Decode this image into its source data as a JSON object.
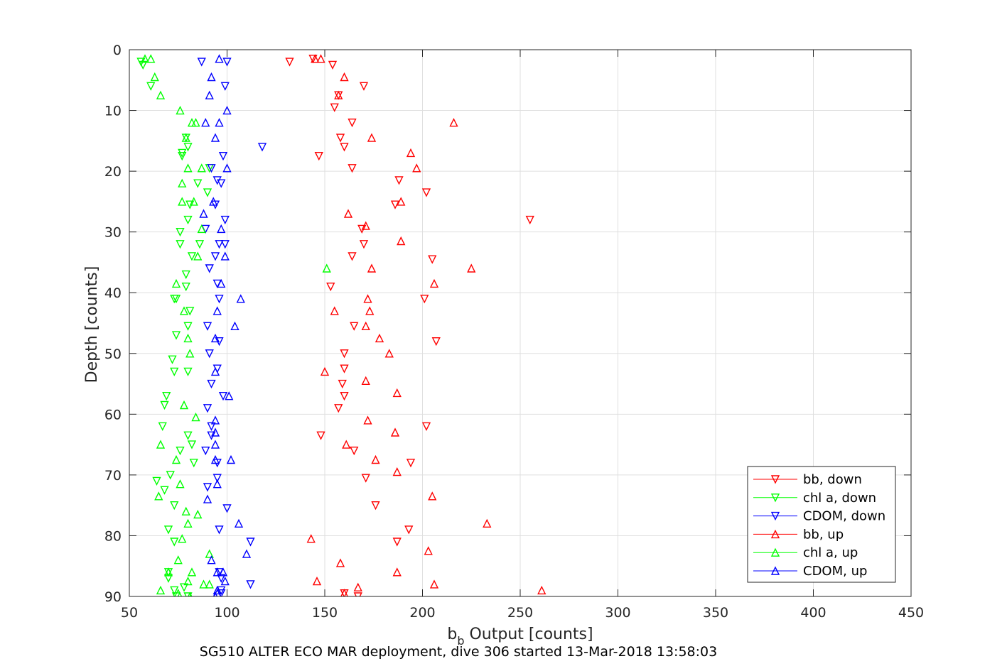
{
  "chart_data": {
    "type": "scatter",
    "xlabel": {
      "main": "b",
      "sub": "b",
      "rest": " Output [counts]"
    },
    "ylabel": "Depth [counts]",
    "caption": "SG510 ALTER ECO MAR deployment, dive 306 started 13-Mar-2018 13:58:03",
    "xlim": [
      50,
      450
    ],
    "ylim": [
      0,
      90
    ],
    "y_reversed": true,
    "grid": true,
    "xticks": [
      "50",
      "100",
      "150",
      "200",
      "250",
      "300",
      "350",
      "400",
      "450"
    ],
    "yticks": [
      "0",
      "10",
      "20",
      "30",
      "40",
      "50",
      "60",
      "70",
      "80",
      "90"
    ],
    "legend_position": "bottom-right",
    "series": [
      {
        "name": "bb, down",
        "color": "#ff0000",
        "marker": "triangle-down",
        "x": [
          144,
          132,
          154,
          170,
          157,
          155,
          164,
          158,
          160,
          147,
          164,
          188,
          202,
          186,
          255,
          169,
          170,
          164,
          205,
          153,
          201,
          165,
          207,
          160,
          160,
          159,
          160,
          157,
          202,
          148,
          165,
          194,
          171,
          176,
          193,
          187,
          160,
          167
        ],
        "y": [
          1.5,
          2,
          2.5,
          6,
          7.5,
          9.5,
          12,
          14.5,
          16,
          17.5,
          19.5,
          21.5,
          23.5,
          25.5,
          28,
          29.5,
          32,
          34,
          34.5,
          39,
          41,
          45.5,
          48,
          50,
          52.5,
          55,
          57,
          59,
          62,
          63.5,
          66,
          68,
          70.5,
          75,
          79,
          81,
          89.5,
          90
        ]
      },
      {
        "name": "chl a, down",
        "color": "#00ff00",
        "marker": "triangle-down",
        "x": [
          56,
          57,
          61,
          79,
          80,
          77,
          77,
          91,
          85,
          81,
          80,
          76,
          76,
          86,
          90,
          82,
          79,
          79,
          74,
          73,
          81,
          80,
          74,
          72,
          73,
          80,
          69,
          68,
          67,
          80,
          82,
          76,
          83,
          71,
          64,
          68,
          73,
          70,
          73,
          70,
          70,
          78,
          74,
          80,
          73
        ],
        "y": [
          2,
          2.5,
          6,
          14.5,
          16,
          17,
          17.5,
          19.5,
          22,
          25.5,
          28,
          30,
          32,
          32,
          23.5,
          34,
          37,
          39,
          41,
          41,
          43,
          45.5,
          47,
          51,
          53,
          53,
          57,
          58.5,
          62,
          63.5,
          65,
          66,
          68,
          70,
          71,
          72.5,
          75,
          79,
          81,
          86,
          87,
          88.5,
          90,
          90,
          89
        ]
      },
      {
        "name": "CDOM, down",
        "color": "#0000ff",
        "marker": "triangle-down",
        "x": [
          87,
          100,
          99,
          118,
          98,
          92,
          95,
          97,
          94,
          99,
          89,
          99,
          96,
          94,
          91,
          95,
          96,
          90,
          96,
          91,
          95,
          92,
          98,
          90,
          92,
          92,
          89,
          95,
          95,
          90,
          100,
          96,
          112,
          96,
          97,
          97,
          112,
          97
        ],
        "y": [
          2,
          2,
          6,
          16,
          17.5,
          19.5,
          21.5,
          22,
          25.5,
          28,
          29.5,
          32,
          32,
          34,
          36,
          38.5,
          41,
          45.5,
          48,
          50,
          52.5,
          55,
          57,
          59,
          62,
          63.5,
          66,
          68,
          70.5,
          72,
          75.5,
          79,
          81,
          86,
          87,
          89,
          88,
          89.5
        ]
      },
      {
        "name": "bb, up",
        "color": "#ff0000",
        "marker": "triangle-up",
        "x": [
          145,
          148,
          160,
          157,
          216,
          174,
          194,
          197,
          189,
          162,
          171,
          189,
          174,
          225,
          206,
          172,
          173,
          155,
          171,
          178,
          183,
          150,
          171,
          187,
          172,
          186,
          161,
          176,
          187,
          205,
          233,
          143,
          203,
          158,
          187,
          167,
          160,
          146,
          206,
          261
        ],
        "y": [
          1.5,
          1.5,
          4.5,
          7.5,
          12,
          14.5,
          17,
          19.5,
          25,
          27,
          29,
          31.5,
          36,
          36,
          38.5,
          41,
          43,
          43,
          45.5,
          47.5,
          50,
          53,
          54.5,
          56.5,
          61,
          63,
          65,
          67.5,
          69.5,
          73.5,
          78,
          80.5,
          82.5,
          84.5,
          86,
          88.5,
          89.5,
          87.5,
          88,
          89
        ]
      },
      {
        "name": "chl a, up",
        "color": "#00ff00",
        "marker": "triangle-up",
        "x": [
          58,
          61,
          63,
          66,
          76,
          82,
          84,
          79,
          80,
          87,
          77,
          77,
          83,
          87,
          85,
          151,
          74,
          78,
          80,
          81,
          78,
          84,
          74,
          66,
          76,
          65,
          79,
          80,
          77,
          75,
          82,
          80,
          88,
          91,
          70,
          66,
          75,
          81,
          91,
          85
        ],
        "y": [
          1.5,
          1.5,
          4.5,
          7.5,
          10,
          12,
          12,
          14.5,
          19.5,
          19.5,
          22,
          25,
          25,
          29.5,
          34,
          36,
          38.5,
          43,
          47.5,
          50,
          58.5,
          60.5,
          67.5,
          65,
          71.5,
          73.5,
          76,
          78,
          80.5,
          84,
          86,
          87.5,
          88,
          88,
          86,
          89,
          89.5,
          90,
          83,
          76.5
        ]
      },
      {
        "name": "CDOM, up",
        "color": "#0000ff",
        "marker": "triangle-up",
        "x": [
          96,
          92,
          91,
          100,
          89,
          96,
          94,
          100,
          88,
          93,
          97,
          97,
          99,
          107,
          95,
          104,
          94,
          94,
          94,
          101,
          94,
          94,
          94,
          102,
          95,
          90,
          106,
          110,
          92,
          95,
          98,
          99,
          95,
          95,
          94
        ],
        "y": [
          1.5,
          4.5,
          7.5,
          10,
          12,
          12,
          14.5,
          19.5,
          27,
          25,
          29.5,
          38.5,
          34,
          41,
          43,
          45.5,
          47.5,
          53,
          61,
          57,
          63,
          65,
          67.5,
          67.5,
          71.5,
          74,
          78,
          83,
          84,
          86,
          86,
          87.5,
          89,
          89.5,
          90
        ]
      }
    ]
  }
}
